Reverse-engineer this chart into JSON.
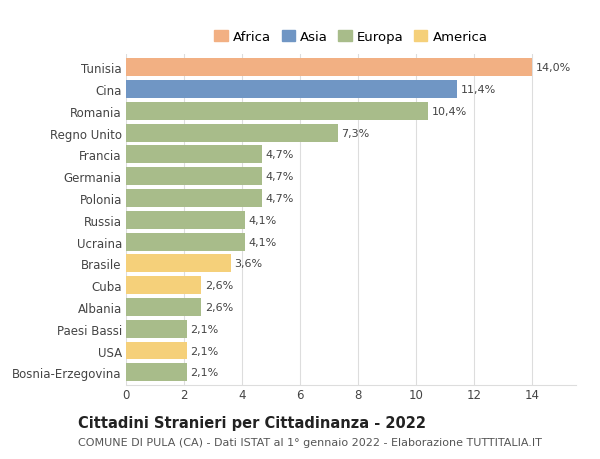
{
  "countries": [
    "Tunisia",
    "Cina",
    "Romania",
    "Regno Unito",
    "Francia",
    "Germania",
    "Polonia",
    "Russia",
    "Ucraina",
    "Brasile",
    "Cuba",
    "Albania",
    "Paesi Bassi",
    "USA",
    "Bosnia-Erzegovina"
  ],
  "values": [
    14.0,
    11.4,
    10.4,
    7.3,
    4.7,
    4.7,
    4.7,
    4.1,
    4.1,
    3.6,
    2.6,
    2.6,
    2.1,
    2.1,
    2.1
  ],
  "labels": [
    "14,0%",
    "11,4%",
    "10,4%",
    "7,3%",
    "4,7%",
    "4,7%",
    "4,7%",
    "4,1%",
    "4,1%",
    "3,6%",
    "2,6%",
    "2,6%",
    "2,1%",
    "2,1%",
    "2,1%"
  ],
  "continents": [
    "Africa",
    "Asia",
    "Europa",
    "Europa",
    "Europa",
    "Europa",
    "Europa",
    "Europa",
    "Europa",
    "America",
    "America",
    "Europa",
    "Europa",
    "America",
    "Europa"
  ],
  "colors": {
    "Africa": "#F2B083",
    "Asia": "#7096C4",
    "Europa": "#A8BC8A",
    "America": "#F5D07A"
  },
  "legend_order": [
    "Africa",
    "Asia",
    "Europa",
    "America"
  ],
  "background_color": "#FFFFFF",
  "plot_bg_color": "#FFFFFF",
  "title": "Cittadini Stranieri per Cittadinanza - 2022",
  "subtitle": "COMUNE DI PULA (CA) - Dati ISTAT al 1° gennaio 2022 - Elaborazione TUTTITALIA.IT",
  "xlim": [
    0,
    15.5
  ],
  "xticks": [
    0,
    2,
    4,
    6,
    8,
    10,
    12,
    14
  ],
  "bar_height": 0.82,
  "grid_color": "#DDDDDD",
  "title_fontsize": 10.5,
  "subtitle_fontsize": 8,
  "tick_fontsize": 8.5,
  "label_fontsize": 8,
  "legend_fontsize": 9.5
}
